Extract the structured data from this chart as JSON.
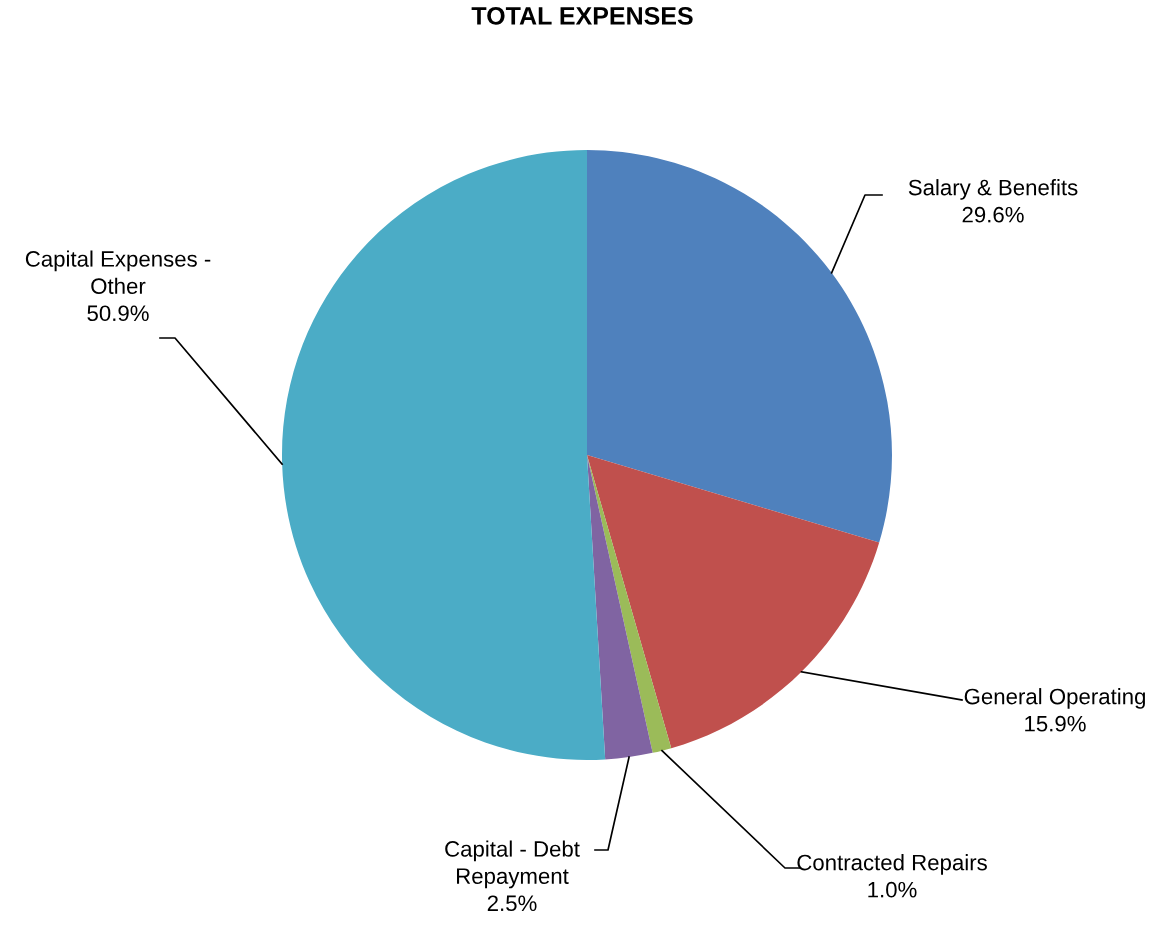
{
  "chart_data": {
    "type": "pie",
    "title": "TOTAL EXPENSES",
    "categories": [
      "Salary & Benefits",
      "General Operating",
      "Contracted Repairs",
      "Capital - Debt\nRepayment",
      "Capital Expenses -\nOther"
    ],
    "values": [
      29.6,
      15.9,
      1.0,
      2.5,
      50.9
    ],
    "value_labels": [
      "29.6%",
      "15.9%",
      "1.0%",
      "2.5%",
      "50.9%"
    ],
    "colors": [
      "#4f81bd",
      "#c0504d",
      "#9bbb59",
      "#8064a2",
      "#4bacc6"
    ],
    "legend": false
  }
}
